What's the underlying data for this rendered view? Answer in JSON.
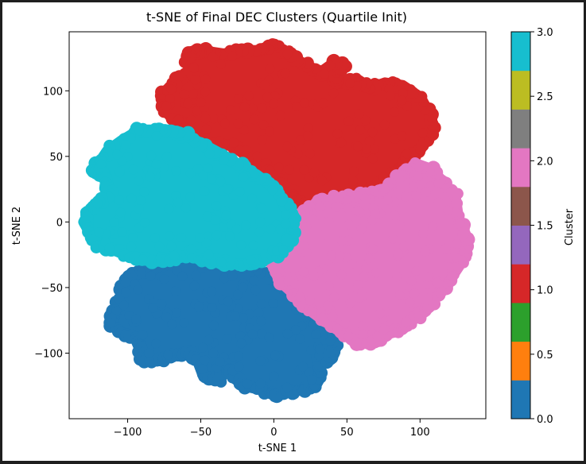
{
  "chart_data": {
    "type": "scatter",
    "title": "t-SNE of Final DEC Clusters (Quartile Init)",
    "xlabel": "t-SNE 1",
    "ylabel": "t-SNE 2",
    "xlim": [
      -140,
      145
    ],
    "ylim": [
      -150,
      145
    ],
    "x_ticks": [
      -100,
      -50,
      0,
      50,
      100
    ],
    "y_ticks": [
      -100,
      -50,
      0,
      50,
      100
    ],
    "x_tick_labels": [
      "−100",
      "−50",
      "0",
      "50",
      "100"
    ],
    "y_tick_labels": [
      "−100",
      "−50",
      "0",
      "50",
      "100"
    ],
    "grid": false,
    "clusters": [
      {
        "cluster": 0,
        "color": "#1f77b4",
        "center": [
          -40,
          -80
        ],
        "outline": [
          [
            -105,
            -60
          ],
          [
            -110,
            -68
          ],
          [
            -112,
            -78
          ],
          [
            -104,
            -84
          ],
          [
            -95,
            -88
          ],
          [
            -92,
            -96
          ],
          [
            -90,
            -106
          ],
          [
            -80,
            -106
          ],
          [
            -68,
            -102
          ],
          [
            -58,
            -98
          ],
          [
            -52,
            -106
          ],
          [
            -48,
            -118
          ],
          [
            -38,
            -120
          ],
          [
            -30,
            -112
          ],
          [
            -26,
            -120
          ],
          [
            -20,
            -125
          ],
          [
            -8,
            -128
          ],
          [
            0,
            -132
          ],
          [
            8,
            -130
          ],
          [
            18,
            -128
          ],
          [
            28,
            -126
          ],
          [
            32,
            -118
          ],
          [
            30,
            -108
          ],
          [
            40,
            -104
          ],
          [
            42,
            -94
          ],
          [
            38,
            -86
          ],
          [
            30,
            -78
          ],
          [
            24,
            -70
          ],
          [
            20,
            -60
          ],
          [
            10,
            -52
          ],
          [
            2,
            -46
          ],
          [
            -8,
            -38
          ],
          [
            -20,
            -30
          ],
          [
            -35,
            -30
          ],
          [
            -50,
            -28
          ],
          [
            -62,
            -26
          ],
          [
            -72,
            -32
          ],
          [
            -85,
            -36
          ],
          [
            -98,
            -40
          ],
          [
            -104,
            -48
          ]
        ]
      },
      {
        "cluster": 1,
        "color": "#d62728",
        "center": [
          10,
          85
        ],
        "outline": [
          [
            -76,
            98
          ],
          [
            -76,
            88
          ],
          [
            -70,
            80
          ],
          [
            -60,
            72
          ],
          [
            -55,
            60
          ],
          [
            -50,
            56
          ],
          [
            -40,
            60
          ],
          [
            -28,
            58
          ],
          [
            -18,
            50
          ],
          [
            -8,
            44
          ],
          [
            2,
            36
          ],
          [
            12,
            22
          ],
          [
            18,
            14
          ],
          [
            30,
            12
          ],
          [
            42,
            14
          ],
          [
            52,
            18
          ],
          [
            62,
            22
          ],
          [
            72,
            28
          ],
          [
            82,
            36
          ],
          [
            90,
            46
          ],
          [
            100,
            56
          ],
          [
            108,
            66
          ],
          [
            108,
            80
          ],
          [
            100,
            95
          ],
          [
            88,
            104
          ],
          [
            76,
            106
          ],
          [
            66,
            102
          ],
          [
            58,
            108
          ],
          [
            46,
            106
          ],
          [
            40,
            108
          ],
          [
            48,
            118
          ],
          [
            42,
            122
          ],
          [
            32,
            114
          ],
          [
            25,
            118
          ],
          [
            15,
            124
          ],
          [
            8,
            130
          ],
          [
            0,
            134
          ],
          [
            -10,
            130
          ],
          [
            -22,
            132
          ],
          [
            -34,
            128
          ],
          [
            -46,
            130
          ],
          [
            -56,
            130
          ],
          [
            -60,
            122
          ],
          [
            -55,
            114
          ],
          [
            -66,
            108
          ]
        ]
      },
      {
        "cluster": 2,
        "color": "#e377c2",
        "center": [
          65,
          -20
        ],
        "outline": [
          [
            2,
            -22
          ],
          [
            -2,
            -30
          ],
          [
            4,
            -45
          ],
          [
            14,
            -55
          ],
          [
            22,
            -65
          ],
          [
            34,
            -75
          ],
          [
            46,
            -84
          ],
          [
            56,
            -92
          ],
          [
            66,
            -92
          ],
          [
            76,
            -86
          ],
          [
            88,
            -82
          ],
          [
            96,
            -74
          ],
          [
            104,
            -68
          ],
          [
            110,
            -58
          ],
          [
            118,
            -50
          ],
          [
            124,
            -38
          ],
          [
            130,
            -28
          ],
          [
            132,
            -12
          ],
          [
            126,
            4
          ],
          [
            124,
            20
          ],
          [
            116,
            30
          ],
          [
            108,
            40
          ],
          [
            98,
            44
          ],
          [
            88,
            36
          ],
          [
            80,
            28
          ],
          [
            70,
            22
          ],
          [
            56,
            20
          ],
          [
            42,
            18
          ],
          [
            30,
            14
          ],
          [
            20,
            8
          ],
          [
            12,
            0
          ],
          [
            6,
            -10
          ]
        ]
      },
      {
        "cluster": 3,
        "color": "#17becf",
        "center": [
          -60,
          15
        ],
        "outline": [
          [
            -120,
            44
          ],
          [
            -124,
            38
          ],
          [
            -115,
            36
          ],
          [
            -112,
            20
          ],
          [
            -124,
            12
          ],
          [
            -130,
            0
          ],
          [
            -125,
            -10
          ],
          [
            -120,
            -18
          ],
          [
            -108,
            -22
          ],
          [
            -95,
            -28
          ],
          [
            -82,
            -30
          ],
          [
            -70,
            -28
          ],
          [
            -58,
            -26
          ],
          [
            -45,
            -30
          ],
          [
            -32,
            -32
          ],
          [
            -18,
            -32
          ],
          [
            -8,
            -30
          ],
          [
            6,
            -22
          ],
          [
            12,
            -12
          ],
          [
            14,
            4
          ],
          [
            8,
            14
          ],
          [
            0,
            26
          ],
          [
            -12,
            36
          ],
          [
            -22,
            42
          ],
          [
            -30,
            48
          ],
          [
            -40,
            54
          ],
          [
            -50,
            60
          ],
          [
            -60,
            66
          ],
          [
            -70,
            70
          ],
          [
            -82,
            70
          ],
          [
            -92,
            70
          ],
          [
            -104,
            62
          ],
          [
            -114,
            54
          ]
        ]
      }
    ],
    "colorbar": {
      "label": "Cluster",
      "range": [
        0,
        3
      ],
      "ticks": [
        0.0,
        0.5,
        1.0,
        1.5,
        2.0,
        2.5,
        3.0
      ],
      "tick_labels": [
        "0.0",
        "0.5",
        "1.0",
        "1.5",
        "2.0",
        "2.5",
        "3.0"
      ],
      "colors": [
        "#1f77b4",
        "#ff7f0e",
        "#2ca02c",
        "#d62728",
        "#9467bd",
        "#8c564b",
        "#e377c2",
        "#7f7f7f",
        "#bcbd22",
        "#17becf"
      ]
    }
  }
}
